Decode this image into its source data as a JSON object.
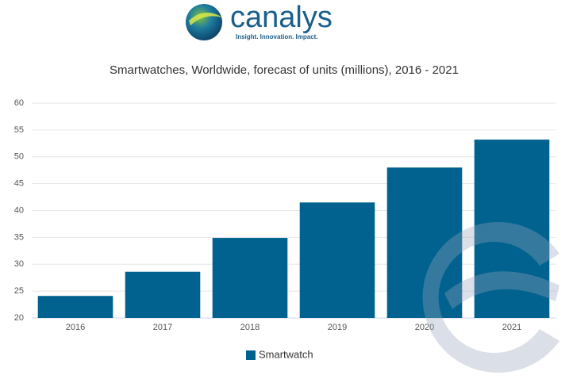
{
  "logo": {
    "name": "canalys",
    "tagline": "Insight. Innovation. Impact."
  },
  "chart_data": {
    "type": "bar",
    "title": "Smartwatches, Worldwide, forecast of units (millions), 2016 - 2021",
    "categories": [
      "2016",
      "2017",
      "2018",
      "2019",
      "2020",
      "2021"
    ],
    "series": [
      {
        "name": "Smartwatch",
        "color": "#01628f",
        "values": [
          24.1,
          28.6,
          34.9,
          41.5,
          48.0,
          53.2
        ]
      }
    ],
    "ylim": [
      20,
      60
    ],
    "yticks": [
      20,
      25,
      30,
      35,
      40,
      45,
      50,
      55,
      60
    ],
    "grid": true,
    "legend": "bottom"
  }
}
